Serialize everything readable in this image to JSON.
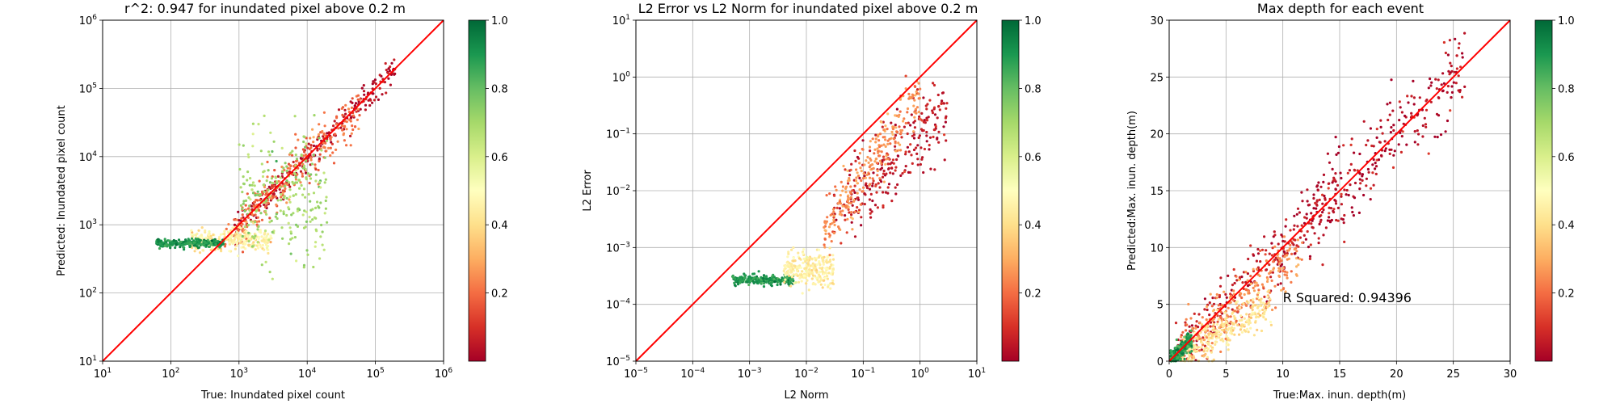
{
  "chart_data": [
    {
      "type": "scatter",
      "title": "r^2: 0.947 for inundated pixel above 0.2 m",
      "xlabel": "True: Inundated pixel count",
      "ylabel": "Predicted: Inundated pixel count",
      "xscale": "log",
      "yscale": "log",
      "xlim": [
        10,
        1000000
      ],
      "ylim": [
        10,
        1000000
      ],
      "xticks": [
        10,
        100,
        1000,
        10000,
        100000,
        1000000
      ],
      "xtick_labels": [
        {
          "b": "10",
          "e": "1"
        },
        {
          "b": "10",
          "e": "2"
        },
        {
          "b": "10",
          "e": "3"
        },
        {
          "b": "10",
          "e": "4"
        },
        {
          "b": "10",
          "e": "5"
        },
        {
          "b": "10",
          "e": "6"
        }
      ],
      "yticks": [
        10,
        100,
        1000,
        10000,
        100000,
        1000000
      ],
      "ytick_labels": [
        {
          "b": "10",
          "e": "1"
        },
        {
          "b": "10",
          "e": "2"
        },
        {
          "b": "10",
          "e": "3"
        },
        {
          "b": "10",
          "e": "4"
        },
        {
          "b": "10",
          "e": "5"
        },
        {
          "b": "10",
          "e": "6"
        }
      ],
      "grid": true,
      "reference_line": {
        "from": [
          10,
          10
        ],
        "to": [
          1000000,
          1000000
        ],
        "color": "#ff0000"
      },
      "colormap": "RdYlGn",
      "color_range": [
        0,
        1
      ],
      "colorbar_ticks": [
        "0.2",
        "0.4",
        "0.6",
        "0.8",
        "1.0"
      ],
      "point_groups": [
        {
          "name": "main diagonal band",
          "x_range": [
            800,
            200000
          ],
          "slope": 1.0,
          "log_spread": 0.09,
          "color_value": 0.03
        },
        {
          "name": "outer band",
          "x_range": [
            600,
            60000
          ],
          "slope": 0.95,
          "log_spread": 0.18,
          "color_value": 0.2
        },
        {
          "name": "low plateau",
          "x_range": [
            200,
            3000
          ],
          "y_center": 600,
          "log_spread": 0.08,
          "color_value": 0.45
        },
        {
          "name": "green tail",
          "x_range": [
            60,
            600
          ],
          "y_center": 540,
          "log_spread": 0.03,
          "color_value": 0.9
        },
        {
          "name": "scattered outliers",
          "x_range": [
            1000,
            20000
          ],
          "y_center": 2500,
          "log_spread": 0.45,
          "color_value": 0.7
        }
      ]
    },
    {
      "type": "scatter",
      "title": "L2 Error vs L2 Norm for inundated pixel above 0.2 m",
      "xlabel": "L2 Norm",
      "ylabel": "L2 Error",
      "xscale": "log",
      "yscale": "log",
      "xlim": [
        1e-05,
        10
      ],
      "ylim": [
        1e-05,
        10
      ],
      "xticks": [
        1e-05,
        0.0001,
        0.001,
        0.01,
        0.1,
        1,
        10
      ],
      "xtick_labels": [
        {
          "b": "10",
          "e": "−5"
        },
        {
          "b": "10",
          "e": "−4"
        },
        {
          "b": "10",
          "e": "−3"
        },
        {
          "b": "10",
          "e": "−2"
        },
        {
          "b": "10",
          "e": "−1"
        },
        {
          "b": "10",
          "e": "0"
        },
        {
          "b": "10",
          "e": "1"
        }
      ],
      "yticks": [
        1e-05,
        0.0001,
        0.001,
        0.01,
        0.1,
        1,
        10
      ],
      "ytick_labels": [
        {
          "b": "10",
          "e": "−5"
        },
        {
          "b": "10",
          "e": "−4"
        },
        {
          "b": "10",
          "e": "−3"
        },
        {
          "b": "10",
          "e": "−2"
        },
        {
          "b": "10",
          "e": "−1"
        },
        {
          "b": "10",
          "e": "0"
        },
        {
          "b": "10",
          "e": "1"
        }
      ],
      "grid": true,
      "reference_line": {
        "from": [
          1e-05,
          1e-05
        ],
        "to": [
          10,
          10
        ],
        "color": "#ff0000"
      },
      "colormap": "RdYlGn",
      "color_range": [
        0,
        1
      ],
      "colorbar_ticks": [
        "0.2",
        "0.4",
        "0.6",
        "0.8",
        "1.0"
      ],
      "point_groups": [
        {
          "name": "green plateau",
          "x_range": [
            0.0005,
            0.006
          ],
          "y_center": 0.00027,
          "log_spread": 0.04,
          "color_value": 0.9
        },
        {
          "name": "yellow transition",
          "x_range": [
            0.004,
            0.03
          ],
          "y_center": 0.0004,
          "log_spread": 0.15,
          "color_value": 0.45
        },
        {
          "name": "red upper band",
          "x_range": [
            0.03,
            3
          ],
          "y_at_x": [
            [
              0.03,
              0.003
            ],
            [
              0.3,
              0.03
            ],
            [
              3,
              0.3
            ]
          ],
          "log_spread": 0.35,
          "color_value": 0.05
        },
        {
          "name": "orange band",
          "x_range": [
            0.02,
            1
          ],
          "y_at_x": [
            [
              0.02,
              0.002
            ],
            [
              0.2,
              0.05
            ],
            [
              1,
              0.5
            ]
          ],
          "log_spread": 0.25,
          "color_value": 0.25
        }
      ]
    },
    {
      "type": "scatter",
      "title": "Max depth for each event",
      "xlabel": "True:Max. inun. depth(m)",
      "ylabel": "Predicted:Max. inun. depth(m)",
      "xscale": "linear",
      "yscale": "linear",
      "xlim": [
        0,
        30
      ],
      "ylim": [
        0,
        30
      ],
      "xticks": [
        0,
        5,
        10,
        15,
        20,
        25,
        30
      ],
      "xtick_labels": [
        {
          "b": "0",
          "e": ""
        },
        {
          "b": "5",
          "e": ""
        },
        {
          "b": "10",
          "e": ""
        },
        {
          "b": "15",
          "e": ""
        },
        {
          "b": "20",
          "e": ""
        },
        {
          "b": "25",
          "e": ""
        },
        {
          "b": "30",
          "e": ""
        }
      ],
      "yticks": [
        0,
        5,
        10,
        15,
        20,
        25,
        30
      ],
      "ytick_labels": [
        {
          "b": "0",
          "e": ""
        },
        {
          "b": "5",
          "e": ""
        },
        {
          "b": "10",
          "e": ""
        },
        {
          "b": "15",
          "e": ""
        },
        {
          "b": "20",
          "e": ""
        },
        {
          "b": "25",
          "e": ""
        },
        {
          "b": "30",
          "e": ""
        }
      ],
      "grid": true,
      "reference_line": {
        "from": [
          0,
          0
        ],
        "to": [
          30,
          30
        ],
        "color": "#ff0000"
      },
      "annotation": {
        "text": "R Squared: 0.94396",
        "x": 10,
        "y": 5.2
      },
      "colormap": "RdYlGn",
      "color_range": [
        0,
        1
      ],
      "colorbar_ticks": [
        "0.2",
        "0.4",
        "0.6",
        "0.8",
        "1.0"
      ],
      "point_groups": [
        {
          "name": "dense red cloud",
          "x_range": [
            0.5,
            15
          ],
          "slope": 1.0,
          "spread": 1.3,
          "color_value": 0.05
        },
        {
          "name": "sparse upper cloud",
          "x_range": [
            12,
            26
          ],
          "slope": 1.0,
          "spread": 2.0,
          "color_value": 0.03
        },
        {
          "name": "orange lower band",
          "x_range": [
            1,
            12
          ],
          "slope": 0.8,
          "spread": 1.2,
          "color_value": 0.25
        },
        {
          "name": "yellow under-predictions",
          "x_range": [
            1,
            9
          ],
          "slope": 0.55,
          "spread": 0.8,
          "color_value": 0.42
        },
        {
          "name": "green near origin",
          "x_range": [
            0.1,
            2
          ],
          "slope": 1.0,
          "spread": 0.4,
          "color_value": 0.88
        }
      ]
    }
  ]
}
